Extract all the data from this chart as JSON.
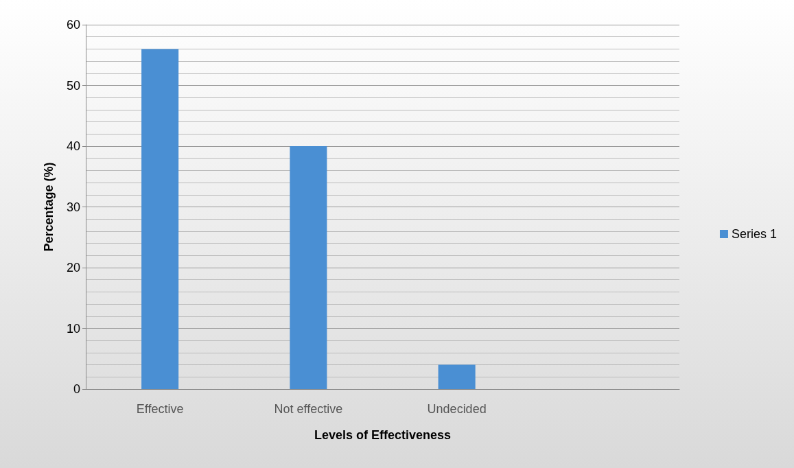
{
  "chart_data": {
    "type": "bar",
    "xlabel": "Levels of Effectiveness",
    "ylabel": "Percentage (%)",
    "categories": [
      "Effective",
      "Not effective",
      "Undecided",
      null
    ],
    "series": [
      {
        "name": "Series 1",
        "color": "#4a8fd3",
        "values": [
          56,
          40,
          4,
          null
        ]
      }
    ],
    "ylim": [
      0,
      60
    ],
    "yticks": [
      0,
      10,
      20,
      30,
      40,
      50,
      60
    ],
    "grid": "y",
    "legend": "right"
  }
}
